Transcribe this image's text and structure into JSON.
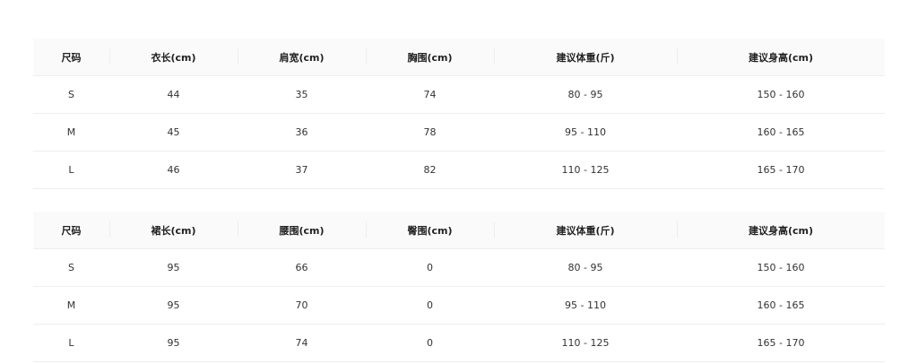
{
  "tables": [
    {
      "headers": [
        "尺码",
        "衣长(cm)",
        "肩宽(cm)",
        "胸围(cm)",
        "建议体重(斤)",
        "建议身高(cm)"
      ],
      "rows": [
        [
          "S",
          "44",
          "35",
          "74",
          "80 - 95",
          "150 - 160"
        ],
        [
          "M",
          "45",
          "36",
          "78",
          "95 - 110",
          "160 - 165"
        ],
        [
          "L",
          "46",
          "37",
          "82",
          "110 - 125",
          "165 - 170"
        ]
      ]
    },
    {
      "headers": [
        "尺码",
        "裙长(cm)",
        "腰围(cm)",
        "臀围(cm)",
        "建议体重(斤)",
        "建议身高(cm)"
      ],
      "rows": [
        [
          "S",
          "95",
          "66",
          "0",
          "80 - 95",
          "150 - 160"
        ],
        [
          "M",
          "95",
          "70",
          "0",
          "95 - 110",
          "160 - 165"
        ],
        [
          "L",
          "95",
          "74",
          "0",
          "110 - 125",
          "165 - 170"
        ]
      ]
    }
  ]
}
